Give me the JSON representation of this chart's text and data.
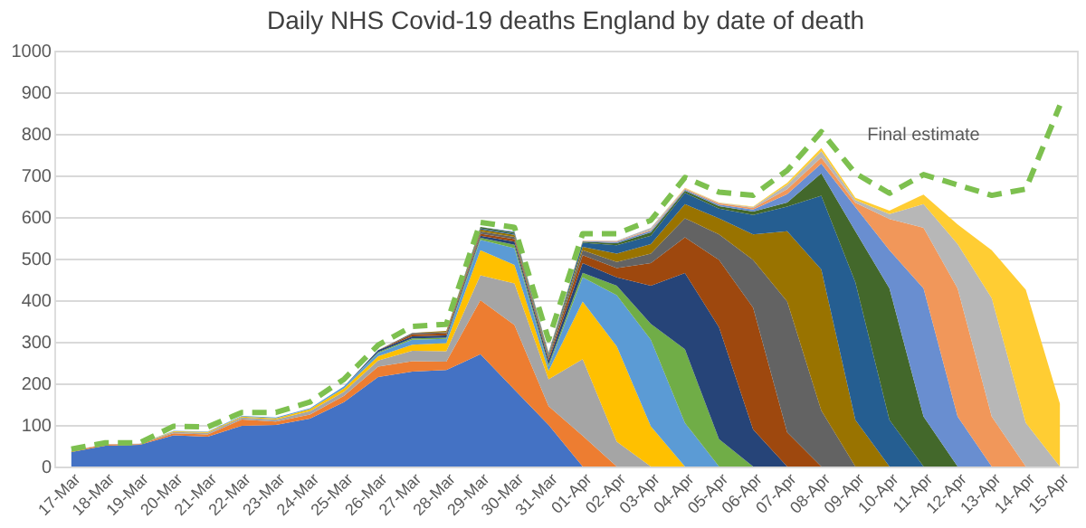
{
  "chart_data": {
    "type": "area",
    "title": "Daily NHS Covid-19 deaths England by date of death",
    "stacked": true,
    "legend": false,
    "grid": "y",
    "categories": [
      "17-Mar",
      "18-Mar",
      "19-Mar",
      "20-Mar",
      "21-Mar",
      "22-Mar",
      "23-Mar",
      "24-Mar",
      "25-Mar",
      "26-Mar",
      "27-Mar",
      "28-Mar",
      "29-Mar",
      "30-Mar",
      "31-Mar",
      "01-Apr",
      "02-Apr",
      "03-Apr",
      "04-Apr",
      "05-Apr",
      "06-Apr",
      "07-Apr",
      "08-Apr",
      "09-Apr",
      "10-Apr",
      "11-Apr",
      "12-Apr",
      "13-Apr",
      "14-Apr",
      "15-Apr"
    ],
    "ylim": [
      0,
      1000
    ],
    "yticks": [
      0,
      100,
      200,
      300,
      400,
      500,
      600,
      700,
      800,
      900,
      1000
    ],
    "series": [
      {
        "color": "#4472c4",
        "values": [
          35,
          50,
          52,
          75,
          72,
          98,
          100,
          115,
          155,
          215,
          228,
          232,
          270,
          185,
          100,
          0,
          0,
          0,
          0,
          0,
          0,
          0,
          0,
          0,
          0,
          0,
          0,
          0,
          0,
          0
        ]
      },
      {
        "color": "#ed7d31",
        "values": [
          2,
          3,
          2,
          5,
          5,
          15,
          8,
          10,
          15,
          25,
          25,
          20,
          130,
          155,
          45,
          74,
          0,
          0,
          0,
          0,
          0,
          0,
          0,
          0,
          0,
          0,
          0,
          0,
          0,
          0
        ]
      },
      {
        "color": "#a5a5a5",
        "values": [
          1,
          1,
          1,
          3,
          4,
          5,
          5,
          8,
          10,
          15,
          25,
          25,
          60,
          100,
          65,
          184,
          60,
          0,
          0,
          0,
          0,
          0,
          0,
          0,
          0,
          0,
          0,
          0,
          0,
          0
        ]
      },
      {
        "color": "#ffc000",
        "values": [
          0,
          0,
          0,
          2,
          2,
          2,
          3,
          5,
          8,
          10,
          15,
          20,
          60,
          45,
          20,
          139,
          229,
          97,
          0,
          0,
          0,
          0,
          0,
          0,
          0,
          0,
          0,
          0,
          0,
          0
        ]
      },
      {
        "color": "#5b9bd5",
        "values": [
          0,
          0,
          0,
          1,
          1,
          2,
          2,
          2,
          5,
          8,
          12,
          10,
          25,
          40,
          10,
          58,
          123,
          208,
          105,
          0,
          0,
          0,
          0,
          0,
          0,
          0,
          0,
          0,
          0,
          0
        ]
      },
      {
        "color": "#70ad47",
        "values": [
          0,
          0,
          0,
          0,
          0,
          0,
          0,
          0,
          0,
          2,
          3,
          3,
          5,
          8,
          5,
          11,
          23,
          38,
          177,
          66,
          0,
          0,
          0,
          0,
          0,
          0,
          0,
          0,
          0,
          0
        ]
      },
      {
        "color": "#264478",
        "values": [
          0,
          0,
          0,
          0,
          0,
          0,
          0,
          0,
          0,
          5,
          5,
          5,
          5,
          8,
          10,
          23,
          20,
          92,
          183,
          269,
          89,
          0,
          0,
          0,
          0,
          0,
          0,
          0,
          0,
          0
        ]
      },
      {
        "color": "#9e480e",
        "values": [
          0,
          0,
          0,
          0,
          0,
          0,
          0,
          0,
          0,
          0,
          5,
          5,
          5,
          6,
          5,
          19,
          22,
          54,
          86,
          162,
          293,
          82,
          0,
          0,
          0,
          0,
          0,
          0,
          0,
          0
        ]
      },
      {
        "color": "#636363",
        "values": [
          0,
          0,
          0,
          0,
          0,
          0,
          0,
          0,
          0,
          0,
          3,
          3,
          5,
          5,
          5,
          12,
          15,
          23,
          46,
          61,
          115,
          315,
          135,
          0,
          0,
          0,
          0,
          0,
          0,
          0
        ]
      },
      {
        "color": "#997300",
        "values": [
          0,
          0,
          0,
          0,
          0,
          0,
          0,
          0,
          0,
          0,
          0,
          3,
          5,
          5,
          3,
          8,
          20,
          23,
          34,
          39,
          61,
          169,
          339,
          112,
          0,
          0,
          0,
          0,
          0,
          0
        ]
      },
      {
        "color": "#255e91",
        "values": [
          0,
          0,
          0,
          0,
          0,
          0,
          0,
          0,
          0,
          0,
          0,
          0,
          3,
          3,
          3,
          10,
          20,
          20,
          27,
          23,
          47,
          59,
          177,
          331,
          112,
          0,
          0,
          0,
          0,
          0
        ]
      },
      {
        "color": "#43682b",
        "values": [
          0,
          0,
          0,
          0,
          0,
          0,
          0,
          0,
          0,
          0,
          0,
          0,
          3,
          3,
          2,
          3,
          5,
          8,
          5,
          6,
          8,
          10,
          54,
          123,
          316,
          120,
          0,
          0,
          0,
          0
        ]
      },
      {
        "color": "#698ed0",
        "values": [
          0,
          0,
          0,
          0,
          0,
          0,
          0,
          0,
          0,
          0,
          0,
          0,
          0,
          2,
          1,
          1,
          3,
          4,
          3,
          4,
          5,
          20,
          23,
          58,
          92,
          308,
          120,
          0,
          0,
          0
        ]
      },
      {
        "color": "#f1975a",
        "values": [
          0,
          0,
          0,
          0,
          0,
          0,
          0,
          0,
          0,
          0,
          0,
          0,
          0,
          0,
          1,
          1,
          2,
          2,
          2,
          3,
          4,
          12,
          15,
          10,
          75,
          146,
          308,
          120,
          0,
          0
        ]
      },
      {
        "color": "#b7b7b7",
        "values": [
          0,
          0,
          0,
          0,
          0,
          0,
          0,
          0,
          0,
          0,
          0,
          0,
          0,
          0,
          0,
          0,
          1,
          5,
          1,
          1,
          2,
          10,
          15,
          7,
          12,
          57,
          107,
          285,
          105,
          0
        ]
      },
      {
        "color": "#ffcd33",
        "values": [
          0,
          0,
          0,
          0,
          0,
          0,
          0,
          0,
          0,
          0,
          0,
          0,
          0,
          0,
          0,
          0,
          0,
          0,
          1,
          1,
          1,
          5,
          8,
          5,
          8,
          23,
          47,
          115,
          320,
          151
        ]
      },
      {
        "type": "line",
        "name": "Final estimate",
        "color": "#7dc04f",
        "line_style": "dashed",
        "values": [
          42,
          57,
          57,
          97,
          95,
          130,
          130,
          155,
          210,
          292,
          337,
          342,
          587,
          575,
          305,
          560,
          560,
          592,
          695,
          660,
          652,
          712,
          805,
          705,
          657,
          702,
          677,
          652,
          667,
          868
        ]
      }
    ]
  }
}
